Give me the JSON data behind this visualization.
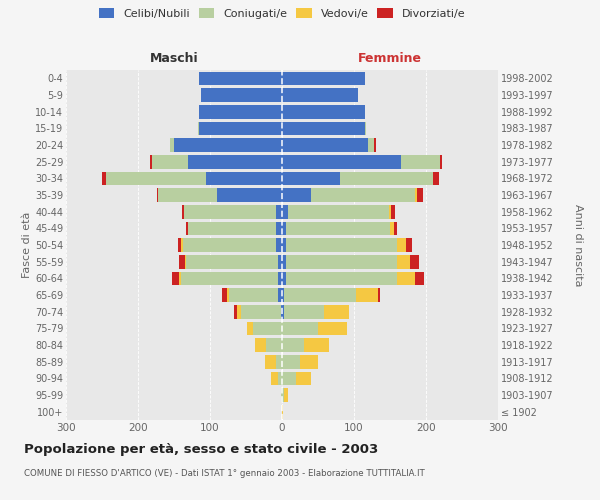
{
  "age_groups": [
    "100+",
    "95-99",
    "90-94",
    "85-89",
    "80-84",
    "75-79",
    "70-74",
    "65-69",
    "60-64",
    "55-59",
    "50-54",
    "45-49",
    "40-44",
    "35-39",
    "30-34",
    "25-29",
    "20-24",
    "15-19",
    "10-14",
    "5-9",
    "0-4"
  ],
  "birth_years": [
    "≤ 1902",
    "1903-1907",
    "1908-1912",
    "1913-1917",
    "1918-1922",
    "1923-1927",
    "1928-1932",
    "1933-1937",
    "1938-1942",
    "1943-1947",
    "1948-1952",
    "1953-1957",
    "1958-1962",
    "1963-1967",
    "1968-1972",
    "1973-1977",
    "1978-1982",
    "1983-1987",
    "1988-1992",
    "1993-1997",
    "1998-2002"
  ],
  "maschi_celibe": [
    0,
    0,
    0,
    0,
    0,
    0,
    2,
    5,
    5,
    5,
    8,
    8,
    8,
    90,
    105,
    130,
    150,
    115,
    115,
    112,
    115
  ],
  "maschi_coniugato": [
    0,
    1,
    5,
    8,
    22,
    40,
    55,
    68,
    135,
    128,
    130,
    122,
    128,
    82,
    140,
    50,
    5,
    2,
    0,
    0,
    0
  ],
  "maschi_vedovo": [
    0,
    1,
    10,
    15,
    15,
    8,
    5,
    3,
    3,
    2,
    2,
    1,
    0,
    0,
    0,
    0,
    0,
    0,
    0,
    0,
    0
  ],
  "maschi_divorziato": [
    0,
    0,
    0,
    0,
    0,
    0,
    5,
    8,
    10,
    8,
    5,
    3,
    3,
    2,
    5,
    3,
    0,
    0,
    0,
    0,
    0
  ],
  "femmine_celibe": [
    0,
    0,
    0,
    0,
    0,
    0,
    3,
    3,
    5,
    5,
    5,
    5,
    8,
    40,
    80,
    165,
    120,
    115,
    115,
    105,
    115
  ],
  "femmine_coniugata": [
    0,
    3,
    20,
    25,
    30,
    50,
    55,
    100,
    155,
    155,
    155,
    145,
    140,
    145,
    130,
    55,
    8,
    2,
    0,
    0,
    0
  ],
  "femmine_vedova": [
    1,
    5,
    20,
    25,
    35,
    40,
    35,
    30,
    25,
    18,
    12,
    5,
    4,
    3,
    0,
    0,
    0,
    0,
    0,
    0,
    0
  ],
  "femmine_divorziata": [
    0,
    0,
    0,
    0,
    0,
    0,
    0,
    3,
    12,
    12,
    8,
    5,
    5,
    8,
    8,
    2,
    2,
    0,
    0,
    0,
    0
  ],
  "col_celibe": "#4472c4",
  "col_coniugato": "#b8cfa0",
  "col_vedovo": "#f5c842",
  "col_divorziato": "#cc2222",
  "title": "Popolazione per età, sesso e stato civile - 2003",
  "subtitle": "COMUNE DI FIESSO D'ARTICO (VE) - Dati ISTAT 1° gennaio 2003 - Elaborazione TUTTITALIA.IT",
  "label_maschi": "Maschi",
  "label_femmine": "Femmine",
  "ylabel_left": "Fasce di età",
  "ylabel_right": "Anni di nascita",
  "legend_labels": [
    "Celibi/Nubili",
    "Coniugati/e",
    "Vedovi/e",
    "Divorziati/e"
  ],
  "xlim": 300,
  "bg_color": "#f5f5f5",
  "plot_bg": "#e8e8e8"
}
